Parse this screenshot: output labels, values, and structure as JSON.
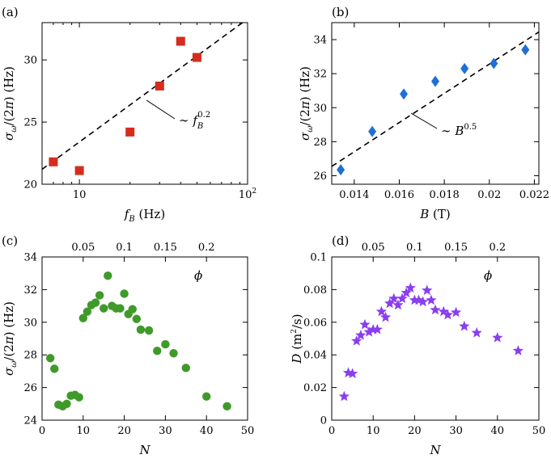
{
  "chart_data": [
    {
      "id": "a",
      "type": "scatter",
      "panel_label": "(a)",
      "xlabel": "f_B (Hz)",
      "ylabel": "σ_ω/(2π) (Hz)",
      "xscale": "log",
      "xlim": [
        6,
        100
      ],
      "ylim": [
        20,
        33
      ],
      "xticks": [
        {
          "v": 10,
          "label": "10"
        },
        {
          "v": 100,
          "label": "10²"
        }
      ],
      "yticks": [
        {
          "v": 20,
          "label": "20"
        },
        {
          "v": 25,
          "label": "25"
        },
        {
          "v": 30,
          "label": "30"
        }
      ],
      "marker": "square",
      "color": "#d62c1e",
      "x": [
        7,
        10,
        20,
        30,
        40,
        50
      ],
      "y": [
        21.8,
        21.1,
        24.2,
        27.9,
        31.5,
        30.2
      ],
      "fit": {
        "label": "∼ f_B^0.2",
        "x": [
          6,
          100
        ],
        "y": [
          21.2,
          33.3
        ]
      },
      "annotation": {
        "text": "∼ f",
        "sub": "B",
        "sup": "0.2"
      }
    },
    {
      "id": "b",
      "type": "scatter",
      "panel_label": "(b)",
      "xlabel": "B (T)",
      "ylabel": "σ_ω/(2π) (Hz)",
      "xscale": "linear",
      "xlim": [
        0.013,
        0.0222
      ],
      "ylim": [
        25.5,
        35
      ],
      "xticks": [
        {
          "v": 0.014,
          "label": "0.014"
        },
        {
          "v": 0.016,
          "label": "0.016"
        },
        {
          "v": 0.018,
          "label": "0.018"
        },
        {
          "v": 0.02,
          "label": "0.02"
        },
        {
          "v": 0.022,
          "label": "0.022"
        }
      ],
      "yticks": [
        {
          "v": 26,
          "label": "26"
        },
        {
          "v": 28,
          "label": "28"
        },
        {
          "v": 30,
          "label": "30"
        },
        {
          "v": 32,
          "label": "32"
        },
        {
          "v": 34,
          "label": "34"
        }
      ],
      "marker": "diamond",
      "color": "#1f6fd6",
      "x": [
        0.0134,
        0.0148,
        0.0162,
        0.0176,
        0.0189,
        0.0202,
        0.0216
      ],
      "y": [
        26.35,
        28.6,
        30.8,
        31.55,
        32.3,
        32.6,
        33.4
      ],
      "fit": {
        "label": "∼ B^0.5",
        "x": [
          0.013,
          0.0222
        ],
        "y": [
          26.55,
          34.45
        ]
      },
      "annotation": {
        "text": "∼ B",
        "sup": "0.5"
      }
    },
    {
      "id": "c",
      "type": "scatter",
      "panel_label": "(c)",
      "xlabel": "N",
      "ylabel": "σ_ω/(2π) (Hz)",
      "xscale": "linear",
      "xlim": [
        0,
        50
      ],
      "ylim": [
        24,
        34
      ],
      "xticks": [
        {
          "v": 0,
          "label": "0"
        },
        {
          "v": 10,
          "label": "10"
        },
        {
          "v": 20,
          "label": "20"
        },
        {
          "v": 30,
          "label": "30"
        },
        {
          "v": 40,
          "label": "40"
        },
        {
          "v": 50,
          "label": "50"
        }
      ],
      "yticks": [
        {
          "v": 24,
          "label": "24"
        },
        {
          "v": 26,
          "label": "26"
        },
        {
          "v": 28,
          "label": "28"
        },
        {
          "v": 30,
          "label": "30"
        },
        {
          "v": 32,
          "label": "32"
        },
        {
          "v": 34,
          "label": "34"
        }
      ],
      "top_axis": {
        "label": "ϕ",
        "ticks": [
          {
            "v": 0.05,
            "label": "0.05"
          },
          {
            "v": 0.1,
            "label": "0.1"
          },
          {
            "v": 0.15,
            "label": "0.15"
          },
          {
            "v": 0.2,
            "label": "0.2"
          }
        ],
        "phi_per_N": 0.005
      },
      "marker": "circle",
      "color": "#3f9a2a",
      "x": [
        2,
        3,
        4,
        5,
        6,
        7,
        8,
        9,
        10,
        11,
        12,
        13,
        14,
        15,
        16,
        17,
        18,
        19,
        20,
        21,
        22,
        23,
        24,
        26,
        28,
        30,
        32,
        35,
        40,
        45
      ],
      "y": [
        27.8,
        27.15,
        24.95,
        24.85,
        25.0,
        25.5,
        25.55,
        25.4,
        30.25,
        30.65,
        31.05,
        31.2,
        31.65,
        30.85,
        32.85,
        31.0,
        30.85,
        30.85,
        31.75,
        30.5,
        30.8,
        30.2,
        29.55,
        29.5,
        28.25,
        28.65,
        28.1,
        27.2,
        25.45,
        24.85
      ]
    },
    {
      "id": "d",
      "type": "scatter",
      "panel_label": "(d)",
      "xlabel": "N",
      "ylabel": "D (m²/s)",
      "xscale": "linear",
      "xlim": [
        0,
        50
      ],
      "ylim": [
        0,
        0.1
      ],
      "xticks": [
        {
          "v": 0,
          "label": "0"
        },
        {
          "v": 10,
          "label": "10"
        },
        {
          "v": 20,
          "label": "20"
        },
        {
          "v": 30,
          "label": "30"
        },
        {
          "v": 40,
          "label": "40"
        },
        {
          "v": 50,
          "label": "50"
        }
      ],
      "yticks": [
        {
          "v": 0,
          "label": "0"
        },
        {
          "v": 0.02,
          "label": "0.02"
        },
        {
          "v": 0.04,
          "label": "0.04"
        },
        {
          "v": 0.06,
          "label": "0.06"
        },
        {
          "v": 0.08,
          "label": "0.08"
        },
        {
          "v": 0.1,
          "label": "0.1"
        }
      ],
      "top_axis": {
        "label": "ϕ",
        "ticks": [
          {
            "v": 0.05,
            "label": "0.05"
          },
          {
            "v": 0.1,
            "label": "0.1"
          },
          {
            "v": 0.15,
            "label": "0.15"
          },
          {
            "v": 0.2,
            "label": "0.2"
          }
        ],
        "phi_per_N": 0.005
      },
      "marker": "star",
      "color": "#8a3ef0",
      "x": [
        3,
        4,
        5,
        6,
        7,
        8,
        9,
        10,
        11,
        12,
        13,
        14,
        15,
        16,
        17,
        18,
        19,
        20,
        21,
        22,
        23,
        24,
        25,
        27,
        28,
        30,
        32,
        35,
        40,
        45
      ],
      "y": [
        0.0145,
        0.029,
        0.0285,
        0.0485,
        0.052,
        0.0585,
        0.054,
        0.0555,
        0.0555,
        0.0665,
        0.063,
        0.0715,
        0.0745,
        0.0705,
        0.0745,
        0.078,
        0.081,
        0.0735,
        0.0735,
        0.0725,
        0.0795,
        0.0735,
        0.0675,
        0.0665,
        0.0645,
        0.066,
        0.0575,
        0.0535,
        0.0505,
        0.0425
      ]
    }
  ]
}
